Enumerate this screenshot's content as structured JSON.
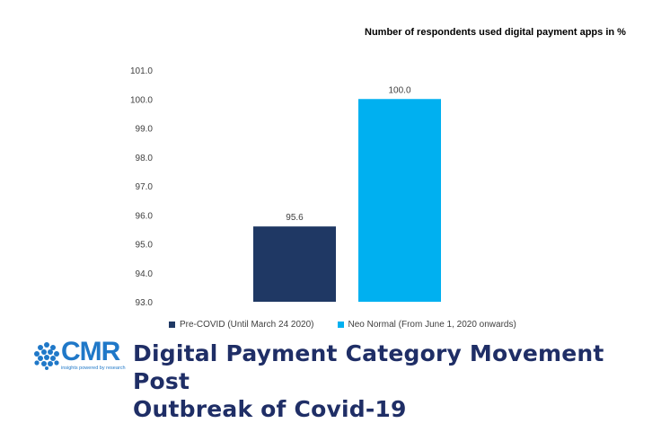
{
  "chart_data": {
    "type": "bar",
    "subtitle": "Number of respondents used digital payment apps in %",
    "categories": [
      "Pre-COVID (Until March 24 2020)",
      "Neo Normal (From June 1, 2020 onwards)"
    ],
    "values": [
      95.6,
      100.0
    ],
    "data_labels": [
      "95.6",
      "100.0"
    ],
    "colors": [
      "#1f3864",
      "#00b0f0"
    ],
    "ylim": [
      93.0,
      101.0
    ],
    "yticks": [
      "93.0",
      "94.0",
      "95.0",
      "96.0",
      "97.0",
      "98.0",
      "99.0",
      "100.0",
      "101.0"
    ],
    "grid": false,
    "legend": [
      "Pre-COVID (Until March 24 2020)",
      "Neo Normal (From June 1, 2020 onwards)"
    ],
    "legend_position": "bottom"
  },
  "branding": {
    "logo_text": "CMR",
    "logo_tagline": "insights powered by research",
    "headline_line1": "Digital Payment Category Movement Post",
    "headline_line2": "Outbreak of Covid-19"
  }
}
